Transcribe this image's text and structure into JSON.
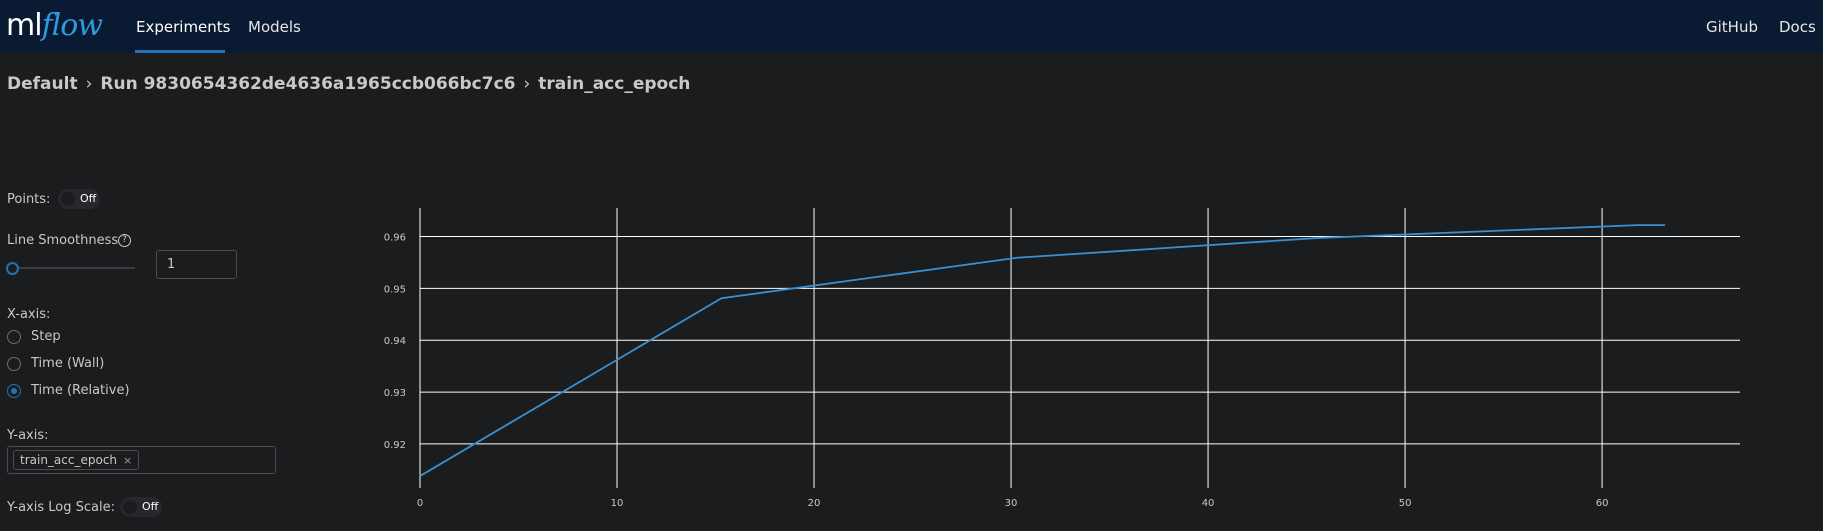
{
  "header": {
    "logo_ml": "ml",
    "logo_flow": "flow",
    "nav": [
      {
        "label": "Experiments",
        "active": true
      },
      {
        "label": "Models",
        "active": false
      }
    ],
    "right_links": [
      {
        "label": "GitHub"
      },
      {
        "label": "Docs"
      }
    ]
  },
  "breadcrumb": {
    "experiment": "Default",
    "run": "Run 9830654362de4636a1965ccb066bc7c6",
    "metric": "train_acc_epoch",
    "separator": "›"
  },
  "controls": {
    "points_label": "Points:",
    "points_toggle": "Off",
    "smoothness_label": "Line Smoothness",
    "smoothness_help_icon": "question-circle-icon",
    "smoothness_value": "1",
    "xaxis_label": "X-axis:",
    "xaxis_options": [
      {
        "label": "Step",
        "checked": false
      },
      {
        "label": "Time (Wall)",
        "checked": false
      },
      {
        "label": "Time (Relative)",
        "checked": true
      }
    ],
    "yaxis_label": "Y-axis:",
    "yaxis_tag": "train_acc_epoch",
    "yaxis_tag_remove": "×",
    "log_scale_label": "Y-axis Log Scale:",
    "log_scale_toggle": "Off"
  },
  "colors": {
    "header_bg": "#0a1a33",
    "accent": "#2272b4",
    "line": "#3a8fd0"
  },
  "chart_data": {
    "type": "line",
    "title": "",
    "xlabel": "",
    "ylabel": "",
    "x_ticks": [
      0,
      10,
      20,
      30,
      40,
      50,
      60
    ],
    "y_ticks": [
      0.92,
      0.93,
      0.94,
      0.95,
      0.96
    ],
    "xlim": [
      0,
      67
    ],
    "ylim": [
      0.9115,
      0.9655
    ],
    "grid": true,
    "series": [
      {
        "x": [
          0,
          15.3,
          30.3,
          45.5,
          61.8,
          63.2
        ],
        "y": [
          0.9138,
          0.9481,
          0.9559,
          0.9597,
          0.9622,
          0.9622
        ]
      }
    ]
  }
}
